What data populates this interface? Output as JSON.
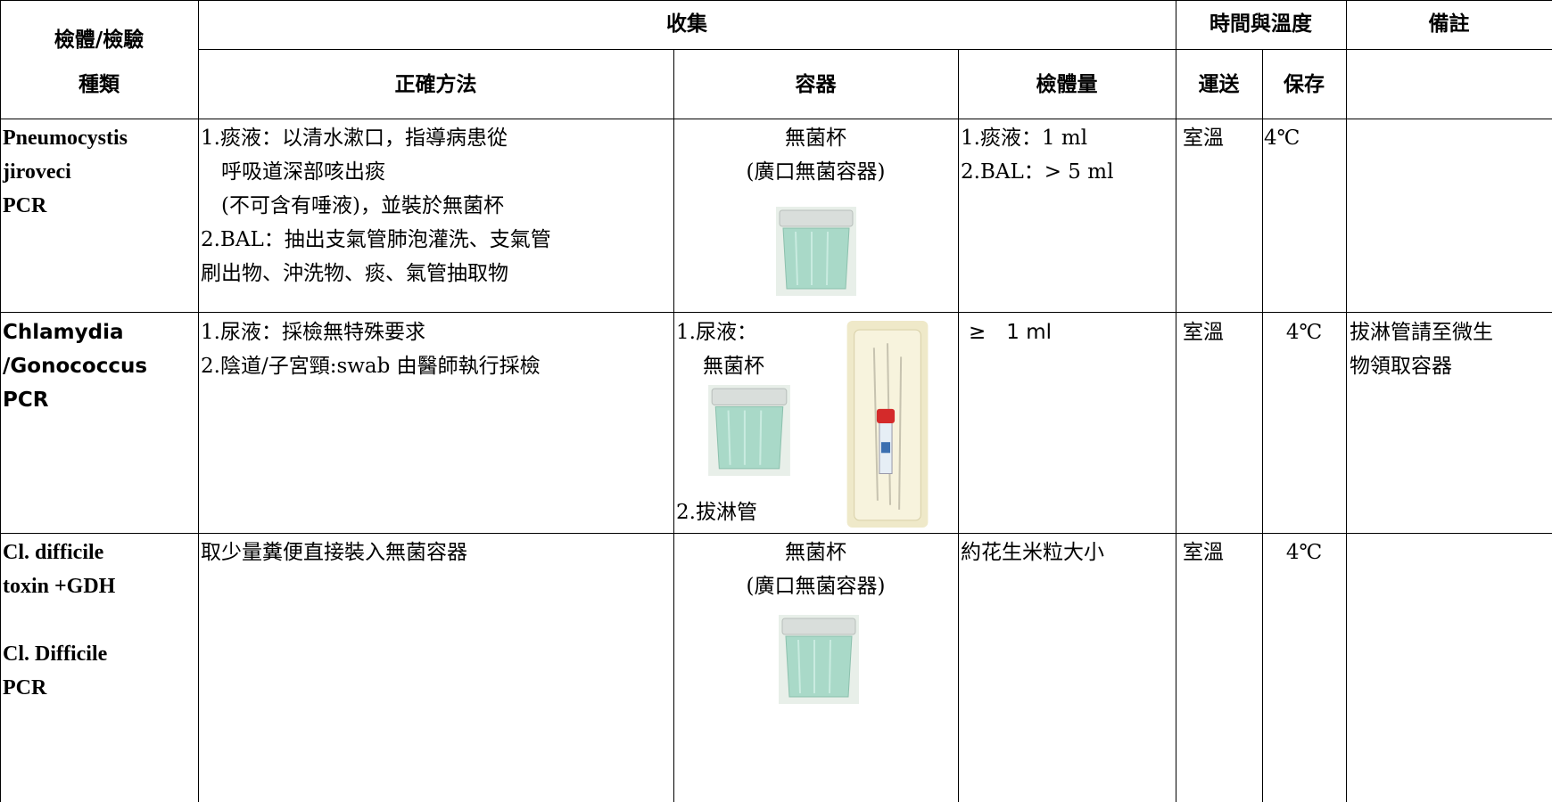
{
  "table": {
    "header": {
      "specimen": [
        "檢體/檢驗",
        "種類"
      ],
      "collection": "收集",
      "time_temp": "時間與溫度",
      "remarks": "備註",
      "method": "正確方法",
      "container": "容器",
      "volume": "檢體量",
      "transport": "運送",
      "storage": "保存"
    },
    "rows": [
      {
        "name": [
          [
            "Pneumocystis",
            "jiroveci",
            "PCR"
          ]
        ],
        "method": [
          "1.痰液：以清水漱口，指導病患從",
          "　呼吸道深部咳出痰",
          "　(不可含有唾液)，並裝於無菌杯",
          "2.BAL：抽出支氣管肺泡灌洗、支氣管",
          "刷出物、沖洗物、痰、氣管抽取物"
        ],
        "container": [
          "無菌杯",
          "(廣口無菌容器)"
        ],
        "volume": [
          "1.痰液：1 ml",
          "2.BAL：> 5 ml"
        ],
        "transport": "室溫",
        "storage": "4℃"
      },
      {
        "name": [
          [
            "Chlamydia",
            "/Gonococcus",
            "PCR"
          ]
        ],
        "method": [
          "1.尿液：採檢無特殊要求",
          "2.陰道/子宮頸:swab 由醫師執行採檢"
        ],
        "container": [
          "1.尿液：",
          "無菌杯",
          "2.拔淋管"
        ],
        "volume": [
          "≥　1 ml"
        ],
        "transport": "室溫",
        "storage": "4℃",
        "remarks": [
          "拔淋管請至微生",
          "物領取容器"
        ]
      },
      {
        "name": [
          [
            "Cl. difficile",
            "toxin +GDH"
          ],
          [
            "Cl. Difficile",
            "PCR"
          ]
        ],
        "method": [
          "取少量糞便直接裝入無菌容器"
        ],
        "container": [
          "無菌杯",
          "(廣口無菌容器)"
        ],
        "volume": [
          "約花生米粒大小"
        ],
        "transport": "室溫",
        "storage": "4℃"
      }
    ]
  }
}
